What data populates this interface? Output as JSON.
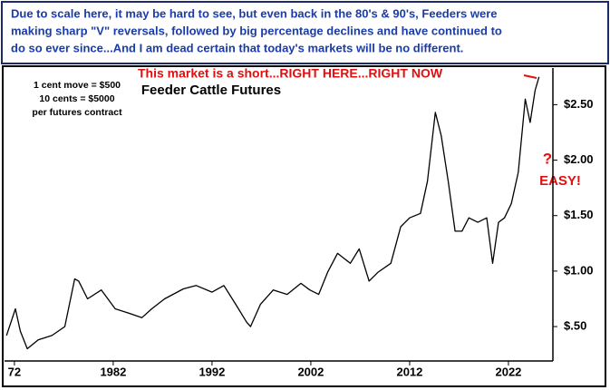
{
  "chart_data": {
    "type": "line",
    "header": [
      "Due to scale here, it may be hard to see, but even back in the 80's & 90's, Feeders were",
      "making sharp \"V\" reversals, followed by big percentage declines and have continued to",
      "do so ever since...And I am dead certain that today's markets will be no different."
    ],
    "title": "Feeder Cattle Futures",
    "annotations": [
      "1 cent move = $500",
      "10 cents = $5000",
      "per futures contract",
      "This market is a short...RIGHT HERE...RIGHT NOW",
      "?",
      "EASY!"
    ],
    "color": "#000000",
    "x": [
      1971.2,
      1972.1,
      1972.6,
      1973.3,
      1974.4,
      1975.8,
      1977.1,
      1978.1,
      1978.5,
      1979.4,
      1980.8,
      1982.2,
      1983.6,
      1984.9,
      1985.9,
      1987.2,
      1989.1,
      1990.4,
      1992,
      1993.2,
      1994.4,
      1995.5,
      1995.9,
      1996.9,
      1998.2,
      1999.6,
      2001,
      2001.9,
      2002.8,
      2003.7,
      2004.7,
      2006,
      2006.9,
      2007.9,
      2008.8,
      2010.1,
      2011.1,
      2012,
      2013.1,
      2013.8,
      2014.6,
      2015.2,
      2015.9,
      2016.6,
      2017.3,
      2018,
      2018.9,
      2019.8,
      2020.4,
      2021,
      2021.6,
      2022.3,
      2023,
      2023.7,
      2024.2,
      2024.7,
      2025.1
    ],
    "values": [
      0.42,
      0.66,
      0.46,
      0.3,
      0.38,
      0.42,
      0.5,
      0.93,
      0.91,
      0.75,
      0.83,
      0.66,
      0.62,
      0.58,
      0.66,
      0.75,
      0.84,
      0.87,
      0.81,
      0.87,
      0.7,
      0.54,
      0.5,
      0.7,
      0.83,
      0.79,
      0.89,
      0.83,
      0.79,
      0.99,
      1.16,
      1.07,
      1.2,
      0.91,
      0.99,
      1.07,
      1.4,
      1.48,
      1.52,
      1.81,
      2.43,
      2.22,
      1.81,
      1.36,
      1.36,
      1.48,
      1.44,
      1.48,
      1.07,
      1.44,
      1.48,
      1.61,
      1.89,
      2.55,
      2.34,
      2.63,
      2.75
    ],
    "xlim": [
      1971,
      2026.5
    ],
    "ylim": [
      0.19,
      2.83
    ],
    "xticks": [
      {
        "value": 1972,
        "label": "72"
      },
      1982,
      1992,
      2002,
      2012,
      2022
    ],
    "yticks": [
      {
        "value": 0.5,
        "label": "$.50"
      },
      {
        "value": 1.0,
        "label": "$1.00"
      },
      {
        "value": 1.5,
        "label": "$1.50"
      },
      {
        "value": 2.0,
        "label": "$2.00"
      },
      {
        "value": 2.5,
        "label": "$2.50"
      }
    ],
    "grid": false
  }
}
